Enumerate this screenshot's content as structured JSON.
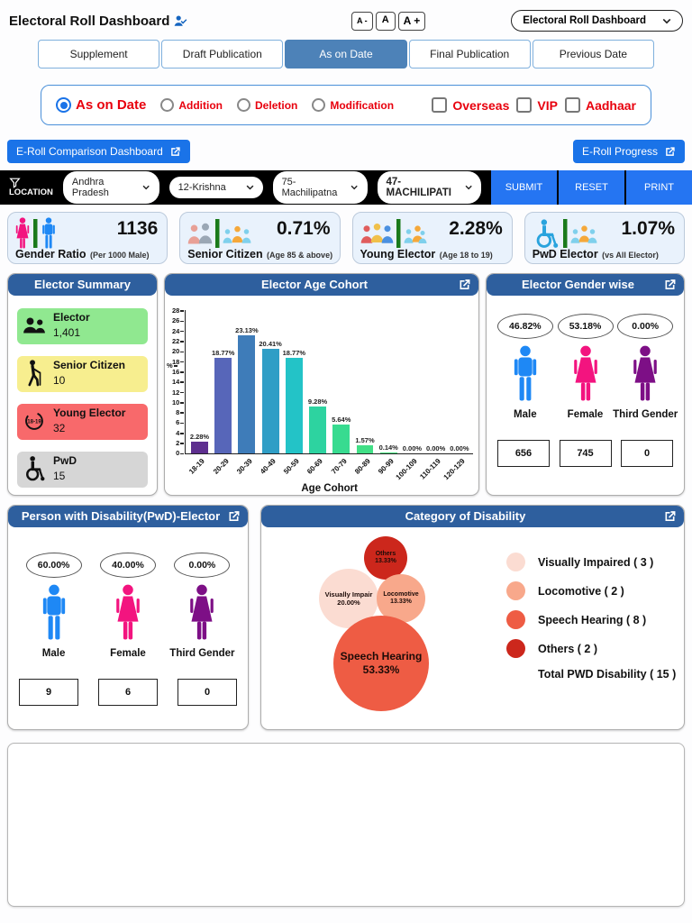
{
  "header": {
    "title": "Electoral Roll Dashboard",
    "font_decrease": "A -",
    "font_normal": "A",
    "font_increase": "A +",
    "dashboard_select_value": "Electoral Roll Dashboard"
  },
  "tabs": [
    {
      "label": "Supplement",
      "active": false
    },
    {
      "label": "Draft Publication",
      "active": false
    },
    {
      "label": "As on Date",
      "active": true
    },
    {
      "label": "Final Publication",
      "active": false
    },
    {
      "label": "Previous Date",
      "active": false
    }
  ],
  "filters": {
    "radios": [
      {
        "label": "As on Date",
        "selected": true
      },
      {
        "label": "Addition",
        "selected": false
      },
      {
        "label": "Deletion",
        "selected": false
      },
      {
        "label": "Modification",
        "selected": false
      }
    ],
    "checkboxes": [
      {
        "label": "Overseas",
        "checked": false
      },
      {
        "label": "VIP",
        "checked": false
      },
      {
        "label": "Aadhaar",
        "checked": false
      }
    ]
  },
  "links": {
    "comparison": "E-Roll Comparison Dashboard",
    "progress": "E-Roll Progress"
  },
  "location_bar": {
    "label": "LOCATION",
    "state": "Andhra Pradesh",
    "district": "12-Krishna",
    "assembly": "75-Machilipatna",
    "part": "47-MACHILIPATI",
    "submit": "SUBMIT",
    "reset": "RESET",
    "print": "PRINT"
  },
  "stat_cards": [
    {
      "value": "1136",
      "title": "Gender Ratio",
      "subtitle": "(Per 1000 Male)"
    },
    {
      "value": "0.71%",
      "title": "Senior Citizen",
      "subtitle": "(Age 85 & above)"
    },
    {
      "value": "2.28%",
      "title": "Young Elector",
      "subtitle": "(Age 18 to 19)"
    },
    {
      "value": "1.07%",
      "title": "PwD Elector",
      "subtitle": "(vs All Elector)"
    }
  ],
  "summary_panel": {
    "title": "Elector Summary",
    "items": [
      {
        "label": "Elector",
        "value": "1,401",
        "color": "#90e890"
      },
      {
        "label": "Senior Citizen",
        "value": "10",
        "color": "#f7ee8f"
      },
      {
        "label": "Young Elector",
        "value": "32",
        "color": "#f8696b"
      },
      {
        "label": "PwD",
        "value": "15",
        "color": "#d6d6d6"
      }
    ]
  },
  "icons": {
    "young_icon_text": "18-19"
  },
  "chart_data": [
    {
      "type": "bar",
      "title": "Elector Age Cohort",
      "categories": [
        "18-19",
        "20-29",
        "30-39",
        "40-49",
        "50-59",
        "60-69",
        "70-79",
        "80-89",
        "90-99",
        "100-109",
        "110-119",
        "120-129"
      ],
      "values": [
        2.28,
        18.77,
        23.13,
        20.41,
        18.77,
        9.28,
        5.64,
        1.57,
        0.14,
        0,
        0,
        0
      ],
      "value_labels": [
        "2.28%",
        "18.77%",
        "23.13%",
        "20.41%",
        "18.77%",
        "9.28%",
        "5.64%",
        "1.57%",
        "0.14%",
        "0.00%",
        "0.00%",
        "0.00%"
      ],
      "colors": [
        "#5e2f8f",
        "#5766b9",
        "#3e7cb9",
        "#2f9ec6",
        "#23c3c7",
        "#2dd3a0",
        "#38db90",
        "#41df86",
        "#47e27f",
        "#4ce57c",
        "#4ce57c",
        "#4ce57c"
      ],
      "xlabel": "Age Cohort",
      "ylabel": "%",
      "ylim": [
        0,
        28
      ],
      "ytick_step": 2,
      "grid": false,
      "legend_position": "none"
    },
    {
      "type": "bubble",
      "title": "Category of Disability",
      "bubbles": [
        {
          "label": "Others",
          "pct": "13.33%",
          "count": 2,
          "color": "#cc271c"
        },
        {
          "label": "Visually Impair",
          "pct": "20.00%",
          "count": 3,
          "color": "#fbdcd2"
        },
        {
          "label": "Locomotive",
          "pct": "13.33%",
          "count": 2,
          "color": "#f8a88b"
        },
        {
          "label": "Speech Hearing",
          "pct": "53.33%",
          "count": 8,
          "color": "#ee5c44"
        }
      ],
      "legend": [
        {
          "label": "Visually Impaired ( 3 )",
          "color": "#fbdcd2"
        },
        {
          "label": "Locomotive ( 2 )",
          "color": "#f8a88b"
        },
        {
          "label": "Speech Hearing ( 8 )",
          "color": "#ee5c44"
        },
        {
          "label": "Others ( 2 )",
          "color": "#cc271c"
        }
      ],
      "total": "Total PWD Disability ( 15 )",
      "legend_position": "right"
    }
  ],
  "gender_panel": {
    "title": "Elector Gender wise",
    "groups": [
      {
        "label": "Male",
        "pct": "46.82%",
        "count": "656",
        "color": "#1e88f5"
      },
      {
        "label": "Female",
        "pct": "53.18%",
        "count": "745",
        "color": "#f3147f"
      },
      {
        "label": "Third Gender",
        "pct": "0.00%",
        "count": "0",
        "color": "#7d0f86"
      }
    ]
  },
  "pwd_panel": {
    "title": "Person with Disability(PwD)-Elector",
    "groups": [
      {
        "label": "Male",
        "pct": "60.00%",
        "count": "9",
        "color": "#1e88f5"
      },
      {
        "label": "Female",
        "pct": "40.00%",
        "count": "6",
        "color": "#f3147f"
      },
      {
        "label": "Third Gender",
        "pct": "0.00%",
        "count": "0",
        "color": "#7d0f86"
      }
    ]
  },
  "colors": {
    "panel_header": "#2e5f9e",
    "active_tab": "#4d82b8",
    "primary_button": "#1a73e8",
    "location_button": "#2575f2",
    "alert_text": "#e8000d",
    "divider_green": "#1a7a1a"
  }
}
